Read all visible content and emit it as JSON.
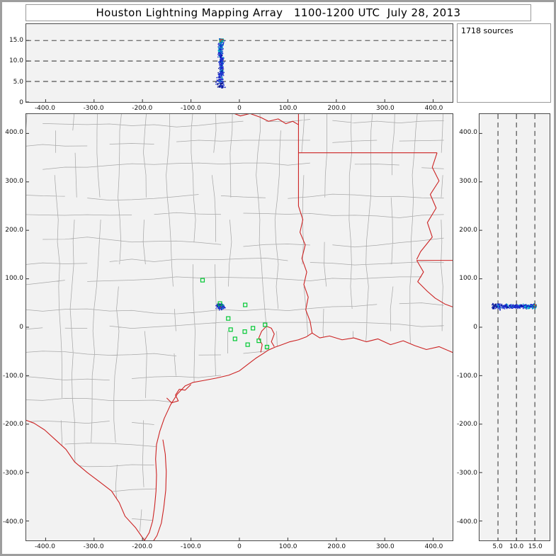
{
  "title": "Houston Lightning Mapping Array   1100-1200 UTC  July 28, 2013",
  "sources_box": {
    "label": "1718 sources"
  },
  "palette": {
    "page_bg": "#ffffff",
    "frame_border": "#9e9e9e",
    "panel_bg": "#f2f2f2",
    "panel_border": "#4a4a4a",
    "county_line": "#a8a8a8",
    "state_line": "#cc2222",
    "station": "#00c832",
    "dashed_line": "#2a2a2a",
    "tick_color": "#333333",
    "label_color": "#111111",
    "source_colors": {
      "blue1": "#1522cc",
      "blue2": "#2a3fd6",
      "navy": "#000f8a",
      "cyan": "#00b7c9",
      "green": "#1fbf2f",
      "red": "#d93a1f"
    }
  },
  "chart_data": [
    {
      "id": "altitude-vs-east-west",
      "type": "scatter",
      "xlim": [
        -440,
        440
      ],
      "ylim": [
        0,
        19
      ],
      "x_ticks": {
        "values": [
          -400,
          -300,
          -200,
          -100,
          0,
          100,
          200,
          300,
          400
        ],
        "labels": [
          "-400.0",
          "-300.0",
          "-200.0",
          "-100.0",
          "0",
          "100.0",
          "200.0",
          "300.0",
          "400.0"
        ]
      },
      "y_ticks": {
        "values": [
          0,
          5,
          10,
          15
        ],
        "labels": [
          "0",
          "5.0",
          "10.0",
          "15.0"
        ]
      },
      "dashed_gridlines_y": [
        5,
        10,
        15
      ]
    },
    {
      "id": "plan-view-map",
      "type": "scatter",
      "xlim": [
        -440,
        440
      ],
      "ylim": [
        -440,
        440
      ],
      "x_ticks": {
        "values": [
          -400,
          -300,
          -200,
          -100,
          0,
          100,
          200,
          300,
          400
        ],
        "labels": [
          "-400.0",
          "-300.0",
          "-200.0",
          "-100.0",
          "0",
          "100.0",
          "200.0",
          "300.0",
          "400.0"
        ]
      },
      "y_ticks": {
        "values": [
          400,
          300,
          200,
          100,
          0,
          -100,
          -200,
          -300,
          -400
        ],
        "labels": [
          "400.0",
          "300.0",
          "200.0",
          "100.0",
          "0",
          "-100.0",
          "-200.0",
          "-300.0",
          "-400.0"
        ]
      },
      "stations_km": [
        [
          -76,
          97
        ],
        [
          -40,
          49
        ],
        [
          12,
          46
        ],
        [
          -23,
          18
        ],
        [
          -18,
          -5
        ],
        [
          -9,
          -24
        ],
        [
          11,
          -9
        ],
        [
          28,
          -2
        ],
        [
          53,
          5
        ],
        [
          17,
          -36
        ],
        [
          40,
          -28
        ],
        [
          57,
          -41
        ]
      ]
    },
    {
      "id": "altitude-vs-north-south",
      "type": "scatter",
      "xlim": [
        0,
        19
      ],
      "ylim": [
        -440,
        440
      ],
      "x_ticks": {
        "values": [
          5,
          10,
          15
        ],
        "labels": [
          "5.0",
          "10.0",
          "15.0"
        ]
      },
      "y_ticks": {
        "values": [
          400,
          300,
          200,
          100,
          0,
          -100,
          -200,
          -300,
          -400
        ],
        "labels": [
          "400.0",
          "300.0",
          "200.0",
          "100.0",
          "0",
          "-100.0",
          "-200.0",
          "-300.0",
          "-400.0"
        ]
      },
      "dashed_gridlines_x": [
        5,
        10,
        15
      ]
    }
  ],
  "lightning_sources": {
    "count": 1718,
    "rendered_points": 520,
    "seed": 20130728,
    "center_east_west_km": -38,
    "center_north_south_km": 43,
    "sigma_east_west_km": 5,
    "sigma_north_south_km": 4,
    "altitude_min_km": 3.3,
    "altitude_max_km": 15.5
  }
}
